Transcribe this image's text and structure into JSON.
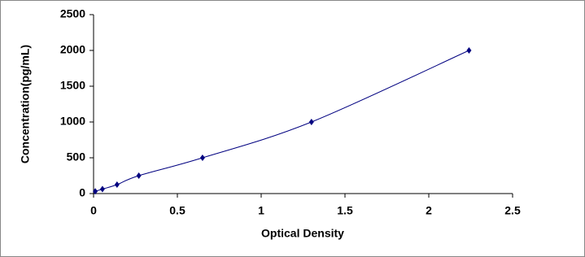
{
  "chart_data": {
    "type": "line",
    "xlabel": "Optical Density",
    "ylabel": "Concentration(pg/mL)",
    "x": [
      0.01,
      0.053,
      0.14,
      0.27,
      0.65,
      1.3,
      2.24
    ],
    "values": [
      31,
      62.5,
      125,
      250,
      500,
      1000,
      2000
    ],
    "color": "#000080",
    "xlim": [
      0,
      2.5
    ],
    "xticks": [
      0,
      0.5,
      1,
      1.5,
      2,
      2.5
    ],
    "ylim": [
      0,
      2500
    ],
    "yticks": [
      0,
      500,
      1000,
      1500,
      2000,
      2500
    ],
    "grid": false
  }
}
